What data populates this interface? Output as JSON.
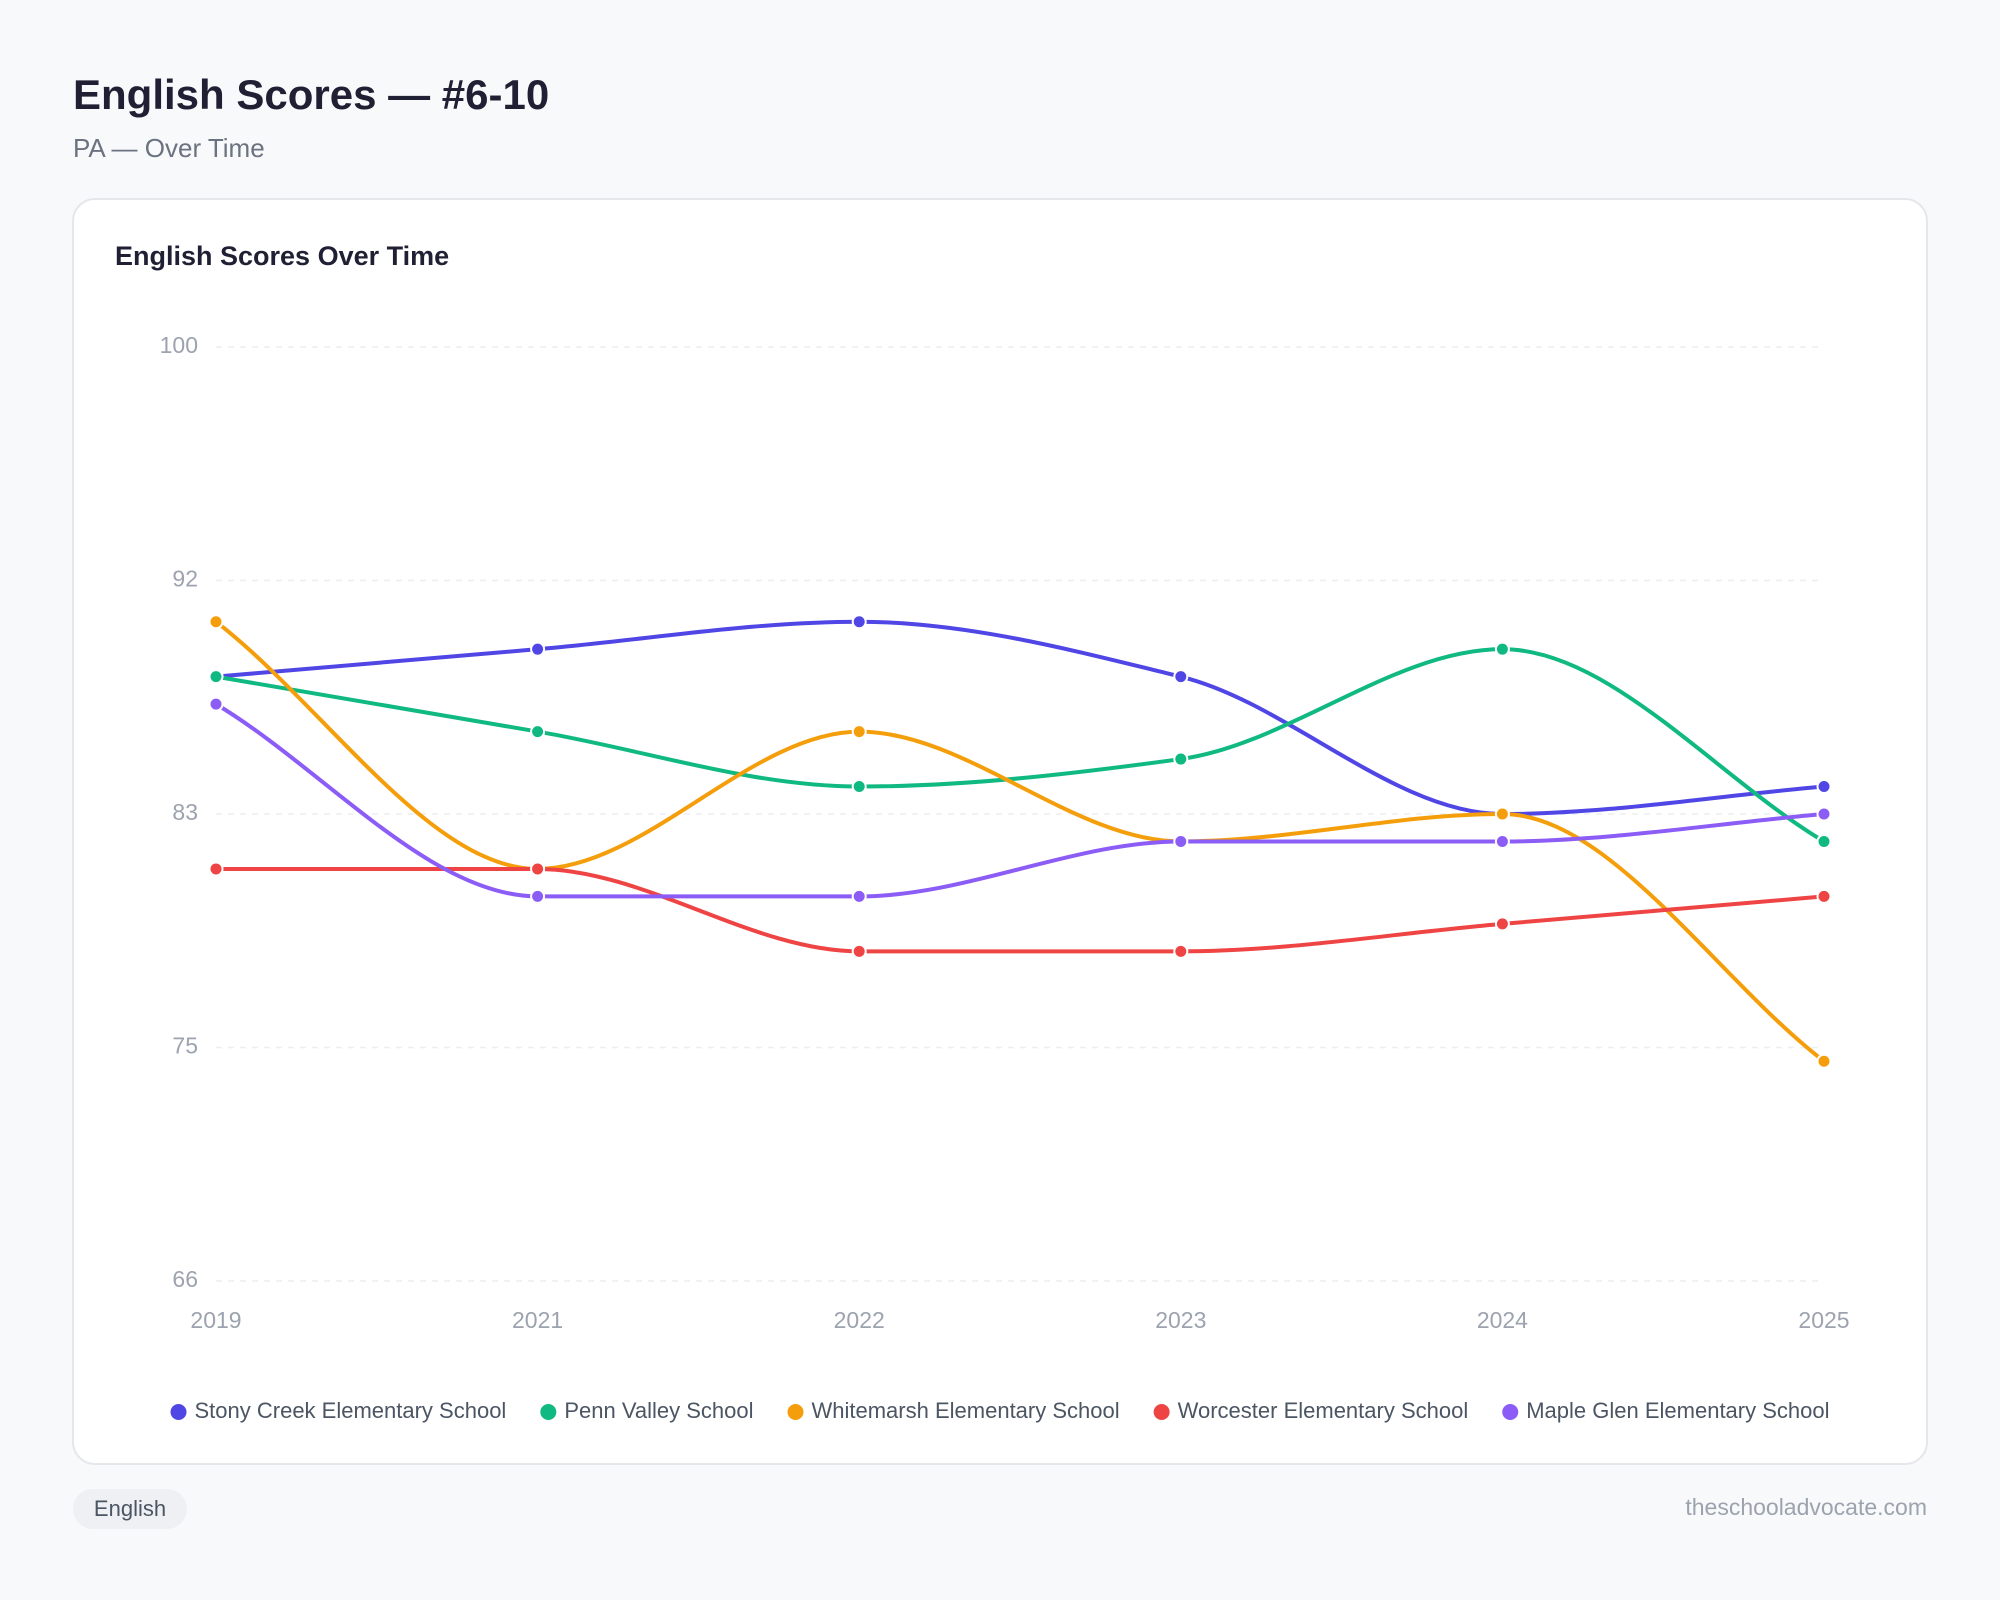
{
  "page": {
    "title": "English Scores — #6-10",
    "subtitle": "PA — Over Time"
  },
  "chart_data": {
    "type": "line",
    "title": "English Scores Over Time",
    "categories": [
      "2019",
      "2021",
      "2022",
      "2023",
      "2024",
      "2025"
    ],
    "series": [
      {
        "name": "Stony Creek Elementary School",
        "color": "#4f46e5",
        "values": [
          88,
          89,
          90,
          88,
          83,
          84
        ]
      },
      {
        "name": "Penn Valley School",
        "color": "#10b981",
        "values": [
          88,
          86,
          84,
          85,
          89,
          82
        ]
      },
      {
        "name": "Whitemarsh Elementary School",
        "color": "#f59e0b",
        "values": [
          90,
          81,
          86,
          82,
          83,
          74
        ]
      },
      {
        "name": "Worcester Elementary School",
        "color": "#ef4444",
        "values": [
          81,
          81,
          78,
          78,
          79,
          80
        ]
      },
      {
        "name": "Maple Glen Elementary School",
        "color": "#8b5cf6",
        "values": [
          87,
          80,
          80,
          82,
          82,
          83
        ]
      }
    ],
    "ylim": [
      66,
      100
    ],
    "yticks": [
      66,
      {
        "value": 74.5,
        "label": "75"
      },
      83,
      {
        "value": 91.5,
        "label": "92"
      },
      100
    ],
    "grid": true,
    "legend": "bottom"
  },
  "footer": {
    "tag": "English",
    "site": "theschooladvocate.com"
  }
}
